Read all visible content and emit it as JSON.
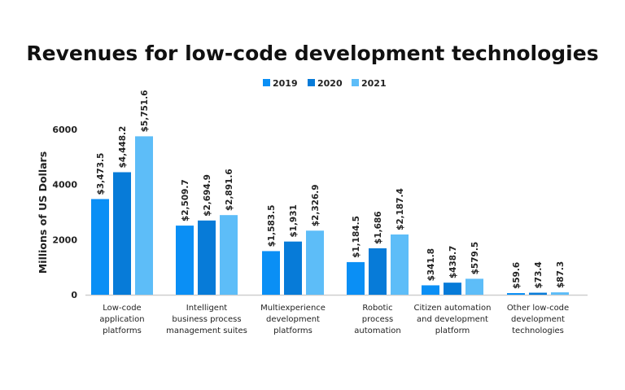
{
  "chart_data": {
    "type": "bar",
    "title": "Revenues for low-code development technologies",
    "ylabel": "Millions of US Dollars",
    "xlabel": "",
    "ylim": [
      0,
      6000
    ],
    "yticks": [
      0,
      2000,
      4000,
      6000
    ],
    "grid": false,
    "legend_position": "top-center",
    "categories": [
      [
        "Low-code",
        "application",
        "platforms"
      ],
      [
        "Intelligent",
        "business process",
        "management suites"
      ],
      [
        "Multiexperience",
        "development",
        "platforms"
      ],
      [
        "Robotic",
        "process",
        "automation"
      ],
      [
        "Citizen automation",
        "and development",
        "platform"
      ],
      [
        "Other low-code",
        "development",
        "technologies"
      ]
    ],
    "series": [
      {
        "name": "2019",
        "color": "#0a8ff5",
        "values": [
          3473.5,
          2509.7,
          1583.5,
          1184.5,
          341.8,
          59.6
        ],
        "labels": [
          "$3,473.5",
          "$2,509.7",
          "$1,583.5",
          "$1,184.5",
          "$341.8",
          "$59.6"
        ]
      },
      {
        "name": "2020",
        "color": "#077bd8",
        "values": [
          4448.2,
          2694.9,
          1931,
          1686,
          438.7,
          73.4
        ],
        "labels": [
          "$4,448.2",
          "$2,694.9",
          "$1,931",
          "$1,686",
          "$438.7",
          "$73.4"
        ]
      },
      {
        "name": "2021",
        "color": "#5dbdf8",
        "values": [
          5751.6,
          2891.6,
          2326.9,
          2187.4,
          579.5,
          87.3
        ],
        "labels": [
          "$5,751.6",
          "$2,891.6",
          "$2,326.9",
          "$2,187.4",
          "$579.5",
          "$87.3"
        ]
      }
    ]
  }
}
